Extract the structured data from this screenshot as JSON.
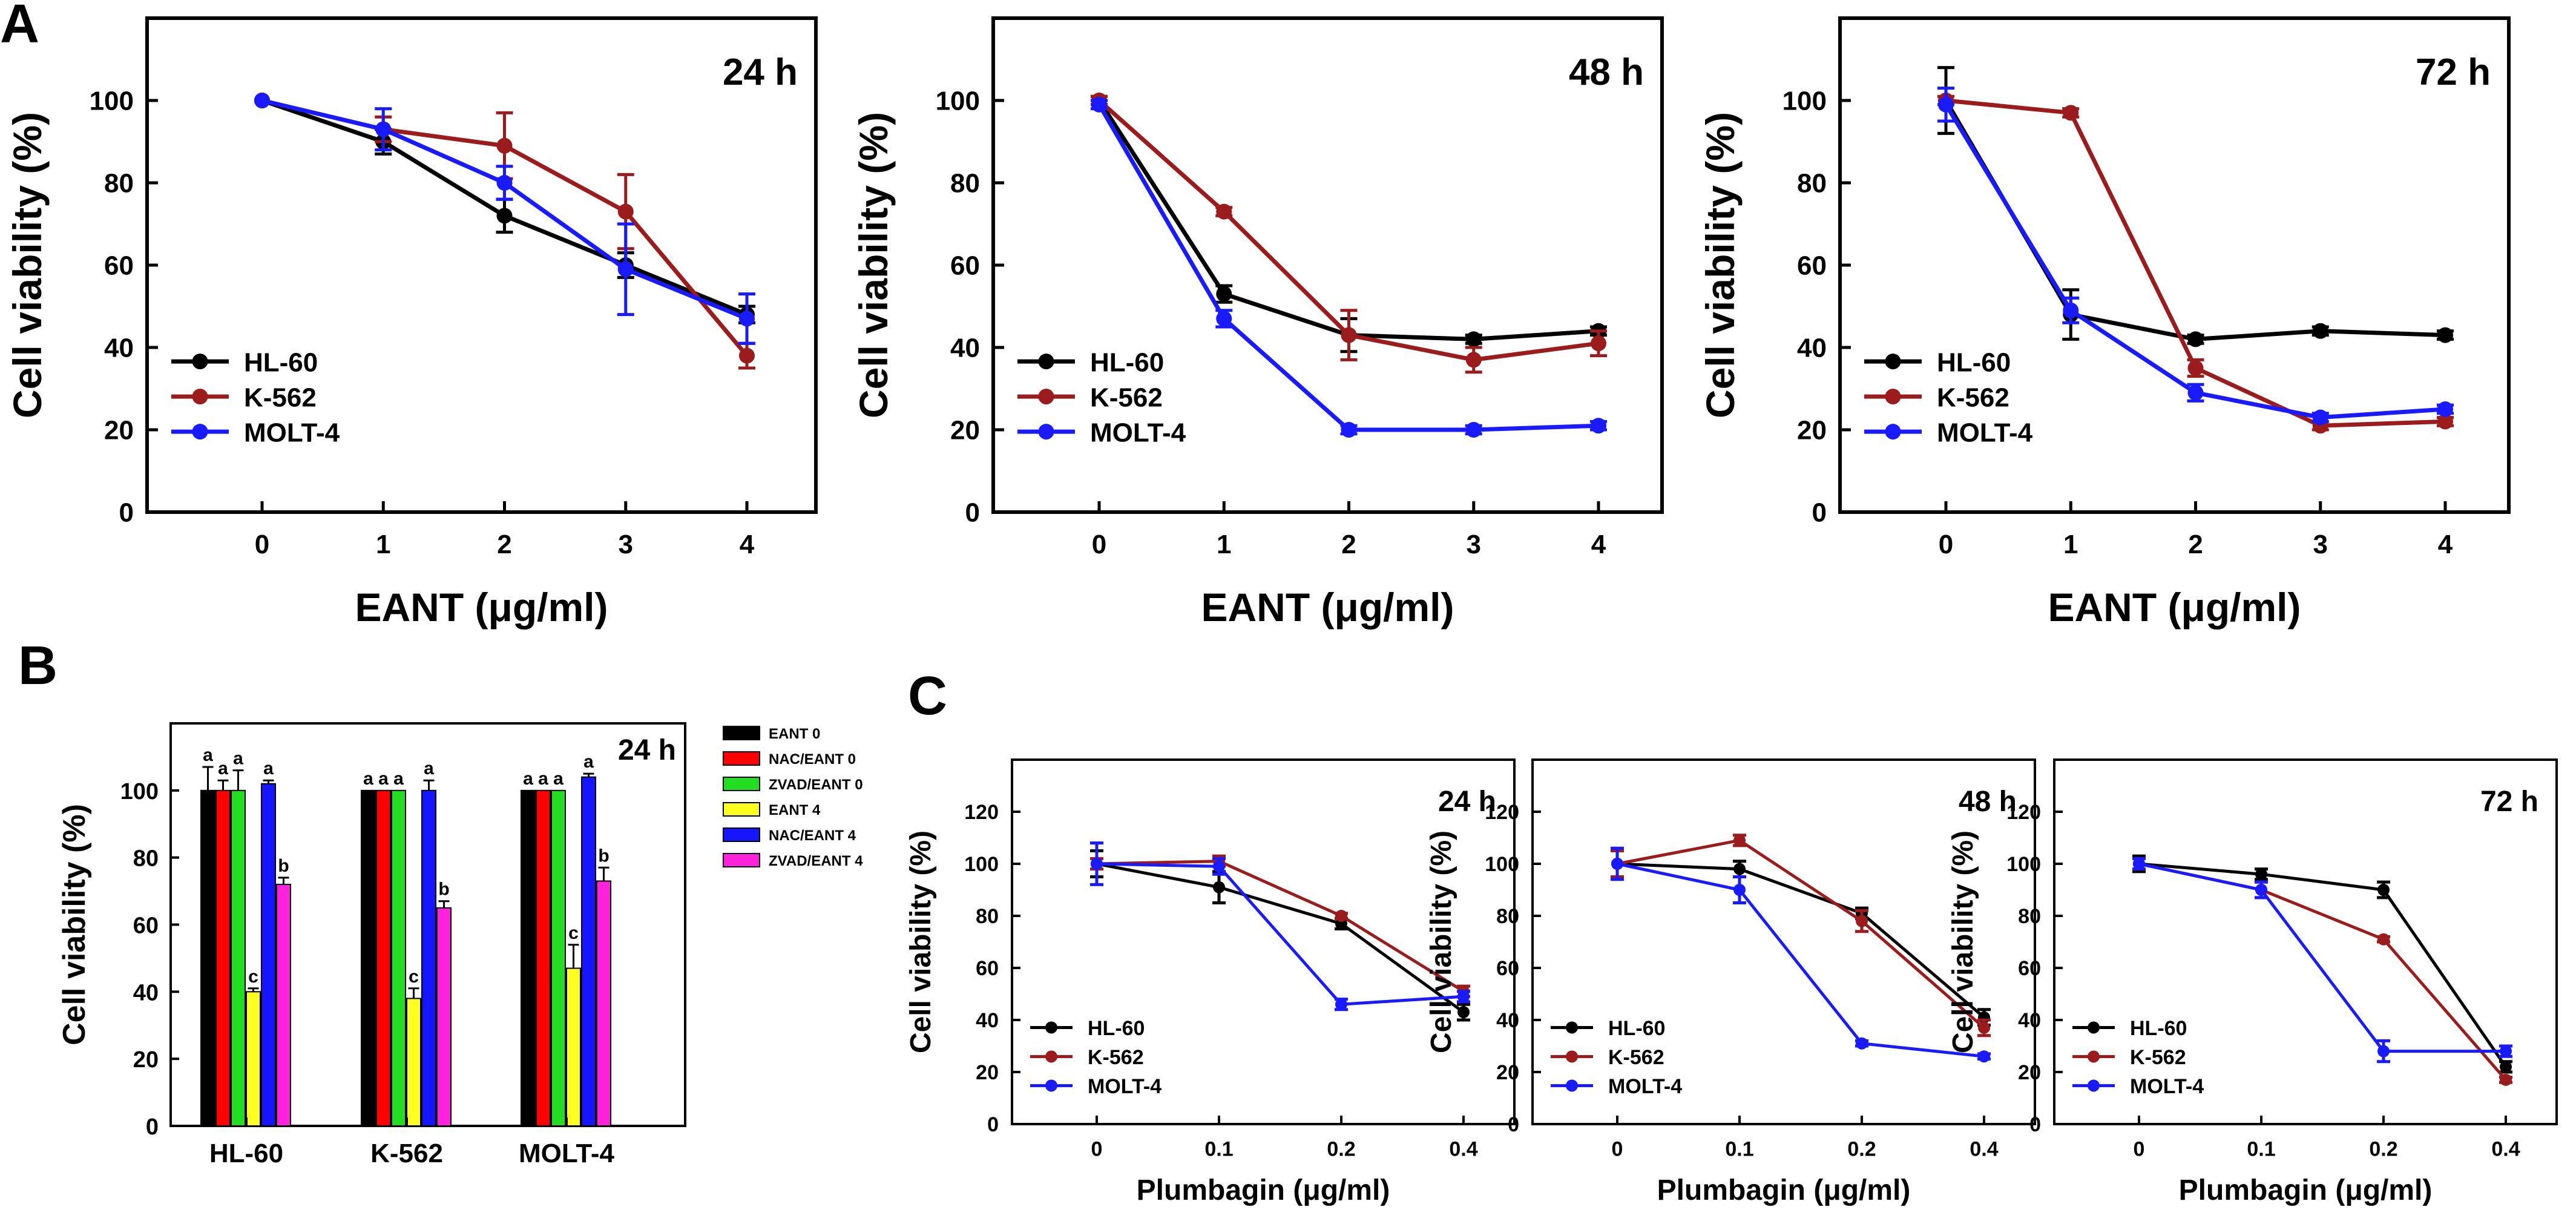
{
  "colors": {
    "HL-60": "#000000",
    "K-562": "#9b1c1c",
    "MOLT-4": "#1a1aff",
    "EANT 0": "#000000",
    "NAC/EANT 0": "#ff0000",
    "ZVAD/EANT 0": "#22dd22",
    "EANT 4": "#ffff22",
    "NAC/EANT 4": "#1515ff",
    "ZVAD/EANT 4": "#ff22dd"
  },
  "panel_labels": {
    "A": "A",
    "B": "B",
    "C": "C"
  },
  "chart_data": [
    {
      "id": "A1",
      "type": "line",
      "title": "24 h",
      "xlabel": "EANT (μg/ml)",
      "ylabel": "Cell viability (%)",
      "x": [
        "0",
        "1",
        "2",
        "3",
        "4"
      ],
      "ylim": [
        0,
        120
      ],
      "yticks": [
        0,
        20,
        40,
        60,
        80,
        100
      ],
      "series": [
        {
          "name": "HL-60",
          "values": [
            100,
            90,
            72,
            60,
            48
          ],
          "errors": [
            0,
            3,
            4,
            3,
            2
          ]
        },
        {
          "name": "K-562",
          "values": [
            100,
            93,
            89,
            73,
            38
          ],
          "errors": [
            0,
            3,
            8,
            9,
            3
          ]
        },
        {
          "name": "MOLT-4",
          "values": [
            100,
            93,
            80,
            59,
            47
          ],
          "errors": [
            0,
            5,
            4,
            11,
            6
          ]
        }
      ]
    },
    {
      "id": "A2",
      "type": "line",
      "title": "48 h",
      "xlabel": "EANT (μg/ml)",
      "ylabel": "Cell viability (%)",
      "x": [
        "0",
        "1",
        "2",
        "3",
        "4"
      ],
      "ylim": [
        0,
        120
      ],
      "yticks": [
        0,
        20,
        40,
        60,
        80,
        100
      ],
      "series": [
        {
          "name": "HL-60",
          "values": [
            100,
            53,
            43,
            42,
            44
          ],
          "errors": [
            1,
            2,
            4,
            1,
            1
          ]
        },
        {
          "name": "K-562",
          "values": [
            100,
            73,
            43,
            37,
            41
          ],
          "errors": [
            1,
            1,
            6,
            3,
            3
          ]
        },
        {
          "name": "MOLT-4",
          "values": [
            99,
            47,
            20,
            20,
            21
          ],
          "errors": [
            1,
            2,
            1,
            1,
            1
          ]
        }
      ]
    },
    {
      "id": "A3",
      "type": "line",
      "title": "72 h",
      "xlabel": "EANT (μg/ml)",
      "ylabel": "Cell viability (%)",
      "x": [
        "0",
        "1",
        "2",
        "3",
        "4"
      ],
      "ylim": [
        0,
        120
      ],
      "yticks": [
        0,
        20,
        40,
        60,
        80,
        100
      ],
      "series": [
        {
          "name": "HL-60",
          "values": [
            100,
            48,
            42,
            44,
            43
          ],
          "errors": [
            8,
            6,
            1,
            1,
            1
          ]
        },
        {
          "name": "K-562",
          "values": [
            100,
            97,
            35,
            21,
            22
          ],
          "errors": [
            1,
            1,
            2,
            1,
            1
          ]
        },
        {
          "name": "MOLT-4",
          "values": [
            99,
            49,
            29,
            23,
            25
          ],
          "errors": [
            4,
            3,
            2,
            1,
            1
          ]
        }
      ]
    },
    {
      "id": "B",
      "type": "bar",
      "title": "24 h",
      "xlabel": "",
      "ylabel": "Cell viability (%)",
      "categories": [
        "HL-60",
        "K-562",
        "MOLT-4"
      ],
      "ylim": [
        0,
        120
      ],
      "yticks": [
        0,
        20,
        40,
        60,
        80,
        100
      ],
      "series": [
        {
          "name": "EANT 0",
          "values": [
            100,
            100,
            100
          ],
          "errors": [
            7,
            0,
            0
          ],
          "labels": [
            "a",
            "a",
            "a"
          ]
        },
        {
          "name": "NAC/EANT 0",
          "values": [
            100,
            100,
            100
          ],
          "errors": [
            3,
            0,
            0
          ],
          "labels": [
            "a",
            "a",
            "a"
          ]
        },
        {
          "name": "ZVAD/EANT 0",
          "values": [
            100,
            100,
            100
          ],
          "errors": [
            6,
            0,
            0
          ],
          "labels": [
            "a",
            "a",
            "a"
          ]
        },
        {
          "name": "EANT 4",
          "values": [
            40,
            38,
            47
          ],
          "errors": [
            1,
            3,
            7
          ],
          "labels": [
            "c",
            "c",
            "c"
          ]
        },
        {
          "name": "NAC/EANT 4",
          "values": [
            102,
            100,
            104
          ],
          "errors": [
            1,
            3,
            1
          ],
          "labels": [
            "a",
            "a",
            "a"
          ]
        },
        {
          "name": "ZVAD/EANT 4",
          "values": [
            72,
            65,
            73
          ],
          "errors": [
            2,
            2,
            4
          ],
          "labels": [
            "b",
            "b",
            "b"
          ]
        }
      ]
    },
    {
      "id": "C1",
      "type": "line",
      "title": "24 h",
      "xlabel": "Plumbagin (μg/ml)",
      "ylabel": "Cell viability (%)",
      "x": [
        "0",
        "0.1",
        "0.2",
        "0.4"
      ],
      "ylim": [
        0,
        140
      ],
      "yticks": [
        0,
        20,
        40,
        60,
        80,
        100,
        120
      ],
      "series": [
        {
          "name": "HL-60",
          "values": [
            100,
            91,
            77,
            43
          ],
          "errors": [
            5,
            6,
            2,
            3
          ]
        },
        {
          "name": "K-562",
          "values": [
            100,
            101,
            80,
            51
          ],
          "errors": [
            2,
            2,
            1,
            2
          ]
        },
        {
          "name": "MOLT-4",
          "values": [
            100,
            99,
            46,
            49
          ],
          "errors": [
            8,
            3,
            2,
            2
          ]
        }
      ]
    },
    {
      "id": "C2",
      "type": "line",
      "title": "48 h",
      "xlabel": "Plumbagin (μg/ml)",
      "ylabel": "Cell viability (%)",
      "x": [
        "0",
        "0.1",
        "0.2",
        "0.4"
      ],
      "ylim": [
        0,
        140
      ],
      "yticks": [
        0,
        20,
        40,
        60,
        80,
        100,
        120
      ],
      "series": [
        {
          "name": "HL-60",
          "values": [
            100,
            98,
            81,
            41
          ],
          "errors": [
            5,
            3,
            2,
            3
          ]
        },
        {
          "name": "K-562",
          "values": [
            100,
            109,
            78,
            37
          ],
          "errors": [
            5,
            2,
            4,
            3
          ]
        },
        {
          "name": "MOLT-4",
          "values": [
            100,
            90,
            31,
            26
          ],
          "errors": [
            6,
            5,
            1,
            1
          ]
        }
      ]
    },
    {
      "id": "C3",
      "type": "line",
      "title": "72 h",
      "xlabel": "Plumbagin (μg/ml)",
      "ylabel": "Cell viability (%)",
      "x": [
        "0",
        "0.1",
        "0.2",
        "0.4"
      ],
      "ylim": [
        0,
        140
      ],
      "yticks": [
        0,
        20,
        40,
        60,
        80,
        100,
        120
      ],
      "series": [
        {
          "name": "HL-60",
          "values": [
            100,
            96,
            90,
            22
          ],
          "errors": [
            3,
            2,
            3,
            2
          ]
        },
        {
          "name": "K-562",
          "values": [
            100,
            90,
            71,
            17
          ],
          "errors": [
            2,
            3,
            1,
            1
          ]
        },
        {
          "name": "MOLT-4",
          "values": [
            100,
            90,
            28,
            28
          ],
          "errors": [
            2,
            3,
            4,
            2
          ]
        }
      ]
    }
  ]
}
